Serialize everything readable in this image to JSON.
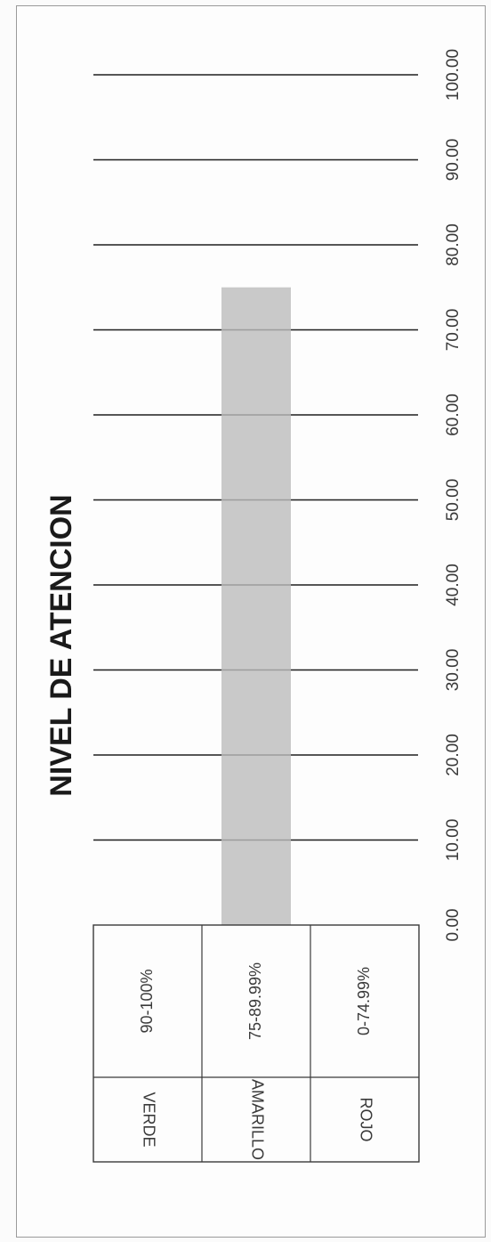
{
  "chart_data": {
    "type": "bar",
    "orientation": "horizontal",
    "title": "NIVEL DE ATENCION",
    "x_ticks": [
      "0.00",
      "10.00",
      "20.00",
      "30.00",
      "40.00",
      "50.00",
      "60.00",
      "70.00",
      "80.00",
      "90.00",
      "100.00"
    ],
    "xlim": [
      0,
      100
    ],
    "grid": true,
    "legend_table": [
      {
        "category": "VERDE",
        "range": "90-100%"
      },
      {
        "category": "AMARILLO",
        "range": "75-89.99%"
      },
      {
        "category": "ROJO",
        "range": "0-74.99%"
      }
    ],
    "series": [
      {
        "values": [
          75
        ]
      }
    ],
    "bar_row": 1,
    "colors": {
      "bar": "#bcbcbc",
      "grid": "#1f1f1f",
      "table_border": "#3a3a3a"
    }
  }
}
